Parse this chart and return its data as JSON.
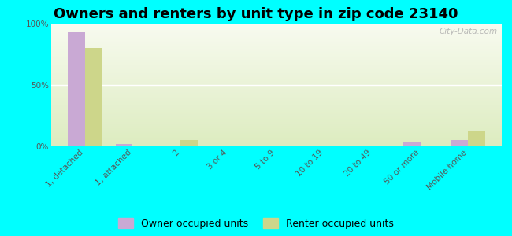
{
  "title": "Owners and renters by unit type in zip code 23140",
  "categories": [
    "1, detached",
    "1, attached",
    "2",
    "3 or 4",
    "5 to 9",
    "10 to 19",
    "20 to 49",
    "50 or more",
    "Mobile home"
  ],
  "owner_values": [
    93,
    2,
    0,
    0,
    0,
    0,
    0,
    3,
    5
  ],
  "renter_values": [
    80,
    0,
    5,
    0,
    0,
    0,
    0,
    0,
    13
  ],
  "owner_color": "#c9a9d4",
  "renter_color": "#cdd68a",
  "background_color": "#00ffff",
  "plot_bg_color": "#e8f0d8",
  "ylim": [
    0,
    100
  ],
  "yticks": [
    0,
    50,
    100
  ],
  "ytick_labels": [
    "0%",
    "50%",
    "100%"
  ],
  "bar_width": 0.35,
  "legend_owner": "Owner occupied units",
  "legend_renter": "Renter occupied units",
  "watermark": "City-Data.com",
  "title_fontsize": 13,
  "tick_fontsize": 7.5,
  "legend_fontsize": 9
}
